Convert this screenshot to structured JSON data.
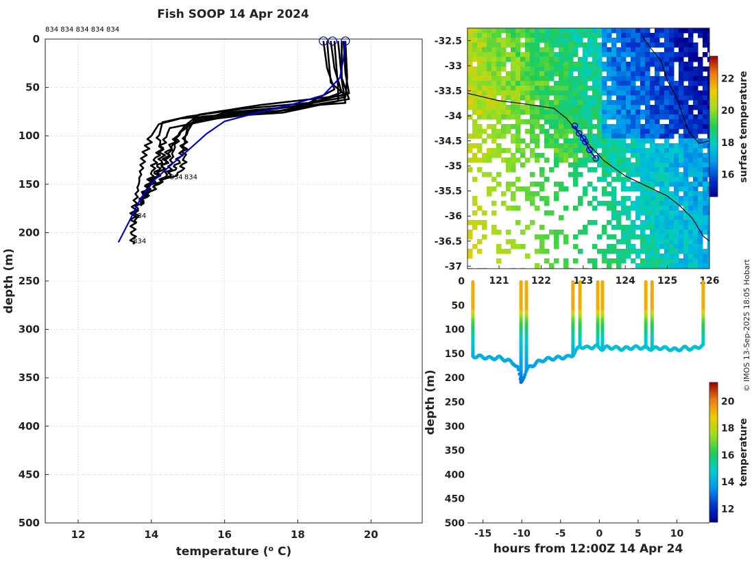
{
  "chart_data": [
    {
      "type": "line",
      "title": "Fish SOOP 14 Apr 2024",
      "xlabel": "temperature (",
      "xlabel_super": "o",
      "xlabel_unit": " C)",
      "ylabel": "depth (m)",
      "xlim": [
        11.1,
        21.4
      ],
      "ylim": [
        500,
        0
      ],
      "xticks": [
        12,
        14,
        16,
        18,
        20
      ],
      "yticks": [
        0,
        50,
        100,
        150,
        200,
        250,
        300,
        350,
        400,
        450,
        500
      ],
      "grid": true,
      "top_annotation": "834 834 834 834 834",
      "annotations": [
        {
          "text": "834",
          "x": 14.5,
          "y": 145
        },
        {
          "text": "834",
          "x": 14.9,
          "y": 145
        },
        {
          "text": "834",
          "x": 13.5,
          "y": 185
        },
        {
          "text": "834",
          "x": 13.5,
          "y": 211
        }
      ],
      "start_markers": [
        {
          "x": 18.7,
          "depth": 2
        },
        {
          "x": 18.95,
          "depth": 2
        },
        {
          "x": 19.3,
          "depth": 2
        }
      ],
      "series": [
        {
          "name": "profile 1",
          "color": "#000000",
          "points": [
            [
              18.7,
              2
            ],
            [
              18.8,
              30
            ],
            [
              19.0,
              52
            ],
            [
              18.2,
              68
            ],
            [
              16.2,
              78
            ],
            [
              14.8,
              82
            ],
            [
              14.2,
              88
            ],
            [
              14.0,
              100
            ],
            [
              13.8,
              120
            ],
            [
              13.7,
              140
            ],
            [
              13.6,
              160
            ],
            [
              13.5,
              180
            ],
            [
              13.5,
              200
            ],
            [
              13.5,
              212
            ]
          ]
        },
        {
          "name": "profile 2",
          "color": "#000000",
          "points": [
            [
              18.9,
              2
            ],
            [
              19.0,
              30
            ],
            [
              19.2,
              55
            ],
            [
              18.0,
              72
            ],
            [
              15.8,
              82
            ],
            [
              14.5,
              92
            ],
            [
              14.3,
              110
            ],
            [
              14.1,
              125
            ],
            [
              14.0,
              142
            ],
            [
              13.8,
              160
            ],
            [
              13.6,
              175
            ],
            [
              13.6,
              190
            ]
          ]
        },
        {
          "name": "profile 3",
          "color": "#000000",
          "points": [
            [
              19.1,
              2
            ],
            [
              19.2,
              40
            ],
            [
              19.4,
              62
            ],
            [
              17.5,
              74
            ],
            [
              15.4,
              80
            ],
            [
              14.8,
              96
            ],
            [
              14.6,
              115
            ],
            [
              14.5,
              135
            ],
            [
              14.2,
              150
            ],
            [
              13.9,
              160
            ],
            [
              13.7,
              170
            ]
          ]
        },
        {
          "name": "profile 4",
          "color": "#000000",
          "points": [
            [
              19.3,
              2
            ],
            [
              19.35,
              40
            ],
            [
              19.3,
              60
            ],
            [
              17.8,
              70
            ],
            [
              16.0,
              76
            ],
            [
              15.0,
              88
            ],
            [
              14.9,
              108
            ],
            [
              14.9,
              125
            ],
            [
              14.8,
              138
            ],
            [
              14.4,
              145
            ],
            [
              14.0,
              150
            ]
          ]
        },
        {
          "name": "profile 5",
          "color": "#000000",
          "points": [
            [
              18.8,
              2
            ],
            [
              18.9,
              45
            ],
            [
              19.3,
              58
            ],
            [
              17.0,
              68
            ],
            [
              15.3,
              78
            ],
            [
              14.9,
              90
            ],
            [
              14.6,
              108
            ],
            [
              14.4,
              128
            ],
            [
              14.2,
              140
            ],
            [
              13.9,
              155
            ],
            [
              13.8,
              165
            ]
          ]
        },
        {
          "name": "profile 6",
          "color": "#000000",
          "points": [
            [
              19.2,
              2
            ],
            [
              19.2,
              42
            ],
            [
              19.3,
              66
            ],
            [
              17.2,
              72
            ],
            [
              15.2,
              82
            ],
            [
              15.0,
              95
            ],
            [
              14.8,
              118
            ],
            [
              14.7,
              130
            ],
            [
              14.5,
              140
            ],
            [
              14.2,
              148
            ],
            [
              13.9,
              162
            ]
          ]
        },
        {
          "name": "profile 7",
          "color": "#000000",
          "points": [
            [
              19.0,
              2
            ],
            [
              19.1,
              50
            ],
            [
              19.1,
              64
            ],
            [
              17.6,
              76
            ],
            [
              16.0,
              80
            ],
            [
              15.2,
              84
            ],
            [
              14.8,
              95
            ],
            [
              14.5,
              112
            ],
            [
              14.4,
              122
            ],
            [
              14.3,
              134
            ],
            [
              14.1,
              145
            ],
            [
              13.8,
              158
            ],
            [
              13.7,
              172
            ]
          ]
        },
        {
          "name": "profile 8",
          "color": "#000000",
          "points": [
            [
              19.25,
              2
            ],
            [
              19.3,
              35
            ],
            [
              19.4,
              56
            ],
            [
              18.3,
              66
            ],
            [
              16.5,
              72
            ],
            [
              15.0,
              80
            ],
            [
              14.3,
              86
            ],
            [
              14.2,
              102
            ],
            [
              14.3,
              120
            ],
            [
              14.2,
              132
            ],
            [
              14.1,
              142
            ],
            [
              13.9,
              152
            ],
            [
              13.8,
              168
            ]
          ]
        },
        {
          "name": "mean profile",
          "color": "#0000dd",
          "points": [
            [
              19.3,
              2
            ],
            [
              19.25,
              20
            ],
            [
              19.15,
              40
            ],
            [
              18.7,
              58
            ],
            [
              17.8,
              68
            ],
            [
              16.9,
              76
            ],
            [
              16.0,
              85
            ],
            [
              15.5,
              98
            ],
            [
              15.0,
              115
            ],
            [
              14.6,
              128
            ],
            [
              14.1,
              145
            ],
            [
              13.7,
              165
            ],
            [
              13.4,
              188
            ],
            [
              13.1,
              210
            ]
          ]
        }
      ]
    },
    {
      "type": "heatmap",
      "title": "",
      "xlim": [
        120.25,
        126.0
      ],
      "ylim": [
        -37.05,
        -32.25
      ],
      "xticks": [
        121,
        122,
        123,
        124,
        125,
        126
      ],
      "xticklabels": [
        "121",
        "122",
        "123",
        "124",
        "125",
        "126"
      ],
      "yticks": [
        -32.5,
        -33,
        -33.5,
        -34,
        -34.5,
        -35,
        -35.5,
        -36,
        -36.5,
        -37
      ],
      "yticklabels": [
        "-32.5",
        "-33",
        "-33.5",
        "-34",
        "-34.5",
        "-35",
        "-35.5",
        "-36",
        "-36.5",
        "-37"
      ],
      "colorbar_label": "surface temperature",
      "colorbar_ticks": [
        16,
        18,
        20,
        22
      ],
      "colorbar_range": [
        14.6,
        23.4
      ],
      "track": [
        [
          122.8,
          -34.2
        ],
        [
          122.9,
          -34.35
        ],
        [
          123.0,
          -34.45
        ],
        [
          123.05,
          -34.52
        ],
        [
          123.15,
          -34.68
        ],
        [
          123.3,
          -34.85
        ]
      ],
      "coastline": [
        [
          120.25,
          -33.55
        ],
        [
          120.5,
          -33.6
        ],
        [
          121.0,
          -33.7
        ],
        [
          121.5,
          -33.75
        ],
        [
          121.9,
          -33.8
        ],
        [
          122.3,
          -33.85
        ],
        [
          122.6,
          -34.05
        ],
        [
          123.0,
          -34.45
        ],
        [
          123.5,
          -34.9
        ],
        [
          124.0,
          -35.2
        ],
        [
          124.5,
          -35.4
        ],
        [
          125.0,
          -35.6
        ],
        [
          125.3,
          -35.8
        ],
        [
          125.6,
          -36.05
        ],
        [
          125.85,
          -36.4
        ],
        [
          126.0,
          -36.5
        ]
      ],
      "land_outline": [
        [
          124.4,
          -32.4
        ],
        [
          124.6,
          -32.65
        ],
        [
          124.85,
          -32.9
        ],
        [
          125.0,
          -33.3
        ],
        [
          125.2,
          -33.6
        ],
        [
          125.35,
          -33.95
        ],
        [
          125.5,
          -34.3
        ],
        [
          125.75,
          -34.55
        ],
        [
          126.0,
          -34.5
        ]
      ]
    },
    {
      "type": "scatter",
      "title": "",
      "xlabel": "hours from 12:00Z 14 Apr 24",
      "ylabel": "depth (m)",
      "xlim": [
        -17,
        14.2
      ],
      "ylim": [
        500,
        0
      ],
      "xticks": [
        -15,
        -10,
        -5,
        0,
        5,
        10
      ],
      "yticks": [
        0,
        50,
        100,
        150,
        200,
        250,
        300,
        350,
        400,
        450,
        500
      ],
      "colorbar_label": "temperature",
      "colorbar_ticks": [
        12,
        14,
        16,
        18,
        20
      ],
      "colorbar_range": [
        11.0,
        21.4
      ],
      "casts": [
        -16.3,
        -10.1,
        -9.4,
        -3.4,
        -2.5,
        -0.2,
        0.4,
        6.0,
        6.8,
        13.4
      ],
      "bottom_path": [
        [
          -16.3,
          155
        ],
        [
          -15,
          157
        ],
        [
          -14,
          160
        ],
        [
          -13,
          158
        ],
        [
          -12,
          163
        ],
        [
          -11,
          170
        ],
        [
          -10.5,
          180
        ],
        [
          -10.1,
          210
        ],
        [
          -9.4,
          185
        ],
        [
          -9,
          178
        ],
        [
          -8,
          168
        ],
        [
          -7,
          162
        ],
        [
          -6,
          160
        ],
        [
          -5,
          158
        ],
        [
          -4,
          157
        ],
        [
          -3.4,
          152
        ],
        [
          -2.5,
          135
        ],
        [
          -1.5,
          138
        ],
        [
          -0.5,
          135
        ],
        [
          0.4,
          140
        ],
        [
          1,
          137
        ],
        [
          2,
          138
        ],
        [
          3,
          140
        ],
        [
          4,
          138
        ],
        [
          5,
          137
        ],
        [
          6.0,
          138
        ],
        [
          6.8,
          140
        ],
        [
          8,
          138
        ],
        [
          9,
          140
        ],
        [
          10,
          142
        ],
        [
          11,
          138
        ],
        [
          12,
          140
        ],
        [
          13.4,
          133
        ]
      ]
    }
  ],
  "footer": {
    "credit": "© IMOS 13-Sep-2025 18:05 Hobart"
  }
}
